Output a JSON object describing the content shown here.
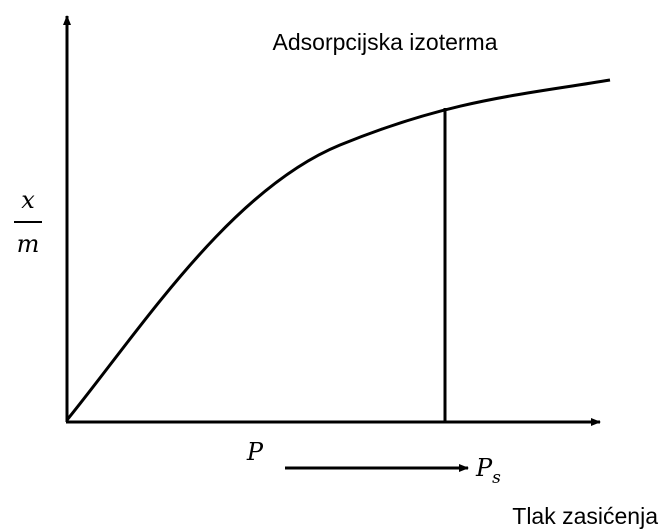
{
  "title": "Adsorpcijska izoterma",
  "y_label": {
    "numerator": "x",
    "denominator": "m"
  },
  "x_label": "P",
  "saturation": {
    "symbol": "P",
    "subscript": "s",
    "label": "Tlak zasićenja"
  }
}
